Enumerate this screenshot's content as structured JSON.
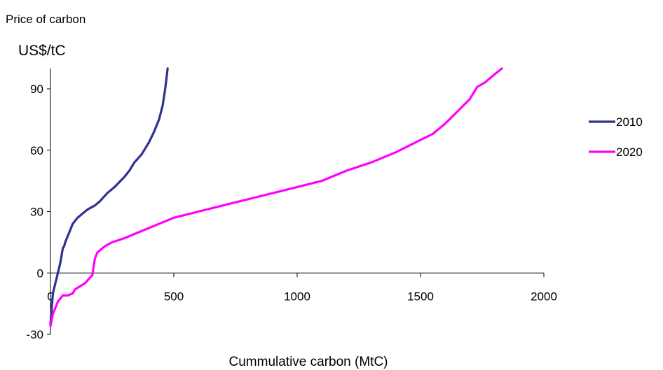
{
  "chart_data": {
    "type": "line",
    "title": "Price of carbon",
    "ylabel": "US$/tC",
    "xlabel": "Cummulative carbon  (MtC)",
    "xlim": [
      0,
      2000
    ],
    "ylim": [
      -30,
      100
    ],
    "xticks": [
      0,
      500,
      1000,
      1500,
      2000
    ],
    "yticks": [
      -30,
      0,
      30,
      60,
      90
    ],
    "grid": false,
    "legend_position": "right",
    "series": [
      {
        "name": "2010",
        "color": "#2E3192",
        "x": [
          0,
          10,
          20,
          30,
          40,
          50,
          55,
          60,
          70,
          90,
          110,
          130,
          150,
          180,
          200,
          230,
          260,
          300,
          320,
          340,
          370,
          400,
          420,
          440,
          455,
          465,
          475
        ],
        "y": [
          -25,
          -10,
          -5,
          0,
          5,
          12,
          13,
          15,
          18,
          24,
          27,
          29,
          31,
          33,
          35,
          39,
          42,
          47,
          50,
          54,
          58,
          64,
          69,
          75,
          82,
          90,
          100
        ]
      },
      {
        "name": "2020",
        "color": "#FF00FF",
        "x": [
          0,
          10,
          30,
          50,
          70,
          90,
          100,
          140,
          170,
          180,
          190,
          220,
          250,
          300,
          400,
          500,
          600,
          700,
          800,
          900,
          1000,
          1100,
          1200,
          1300,
          1400,
          1500,
          1550,
          1600,
          1650,
          1700,
          1730,
          1760,
          1800,
          1830
        ],
        "y": [
          -26,
          -20,
          -14,
          -11,
          -11,
          -10,
          -8,
          -5,
          -1,
          7,
          10,
          13,
          15,
          17,
          22,
          27,
          30,
          33,
          36,
          39,
          42,
          45,
          50,
          54,
          59,
          65,
          68,
          73,
          79,
          85,
          91,
          93,
          97,
          100
        ]
      }
    ]
  }
}
